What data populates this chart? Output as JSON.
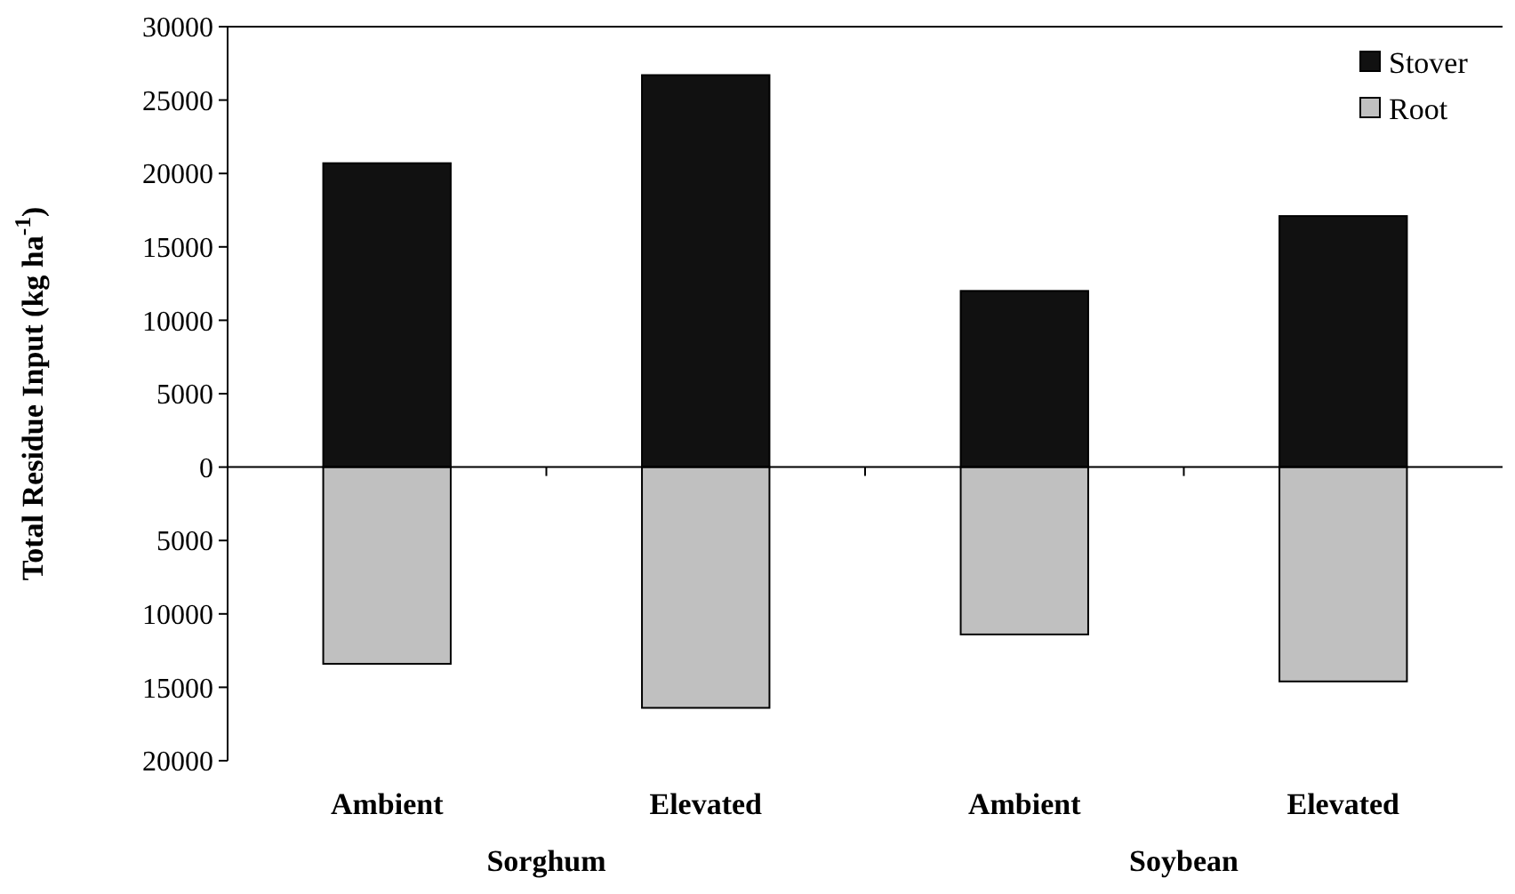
{
  "chart_data": {
    "type": "bar",
    "ylabel": "Total Residue Input (kg ha$^{-1}$)",
    "categories": [
      "Ambient",
      "Elevated",
      "Ambient",
      "Elevated"
    ],
    "series": [
      {
        "name": "Stover",
        "color": "#111111",
        "values": [
          20700,
          26700,
          12000,
          17100
        ]
      },
      {
        "name": "Root",
        "color": "#c0c0c0",
        "values": [
          -13400,
          -16400,
          -11400,
          -14600
        ]
      }
    ],
    "ylim": [
      -20000,
      30000
    ],
    "yticks": [
      {
        "value": -20000,
        "label": "20000"
      },
      {
        "value": -15000,
        "label": "15000"
      },
      {
        "value": -10000,
        "label": "10000"
      },
      {
        "value": -5000,
        "label": "5000"
      },
      0,
      5000,
      10000,
      15000,
      20000,
      25000,
      30000
    ],
    "annotations": [
      "Sorghum",
      "Soybean"
    ],
    "stacked": true,
    "legend": "top right"
  }
}
